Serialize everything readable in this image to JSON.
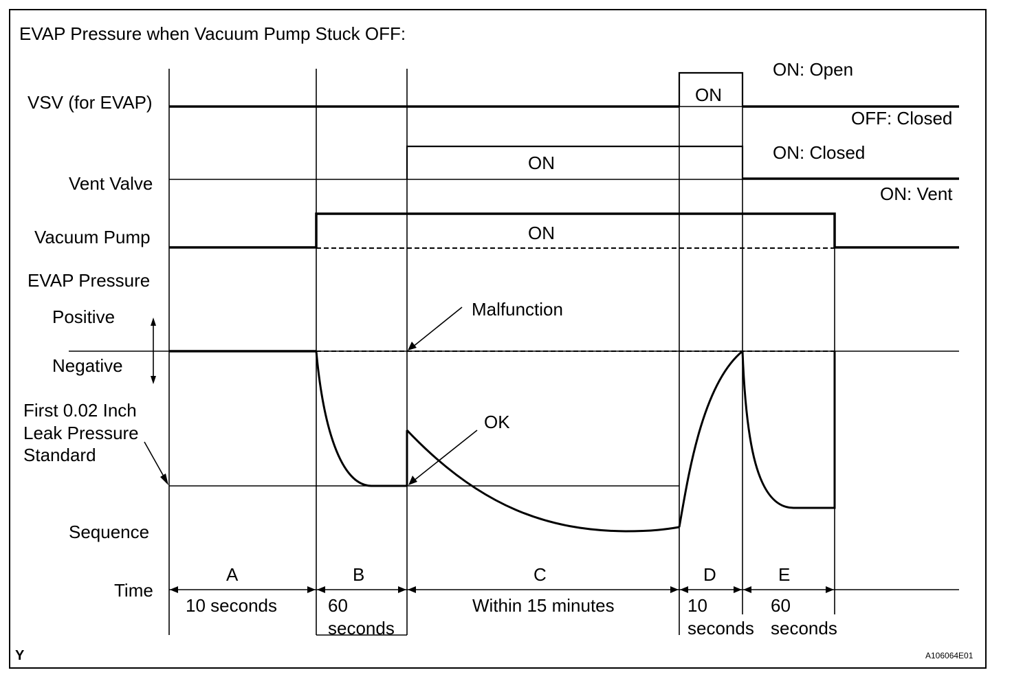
{
  "title": "EVAP Pressure when Vacuum Pump Stuck OFF:",
  "row_labels": {
    "vsv": "VSV (for EVAP)",
    "vent_valve": "Vent Valve",
    "vacuum_pump": "Vacuum Pump",
    "evap_pressure": "EVAP Pressure",
    "positive": "Positive",
    "negative": "Negative",
    "leak_line1": "First 0.02 Inch",
    "leak_line2": "Leak Pressure",
    "leak_line3": "Standard",
    "sequence": "Sequence",
    "time": "Time"
  },
  "state_labels": {
    "vsv_on_open": "ON: Open",
    "vsv_off_closed": "OFF: Closed",
    "vent_on_closed": "ON: Closed",
    "vent_on_vent": "ON: Vent",
    "vsv_on": "ON",
    "vent_on": "ON",
    "pump_on": "ON"
  },
  "callouts": {
    "malfunction": "Malfunction",
    "ok": "OK"
  },
  "sequence": [
    {
      "letter": "A",
      "duration": [
        "10 seconds"
      ]
    },
    {
      "letter": "B",
      "duration": [
        "60",
        "seconds"
      ]
    },
    {
      "letter": "C",
      "duration": [
        "Within 15 minutes"
      ]
    },
    {
      "letter": "D",
      "duration": [
        "10",
        "seconds"
      ]
    },
    {
      "letter": "E",
      "duration": [
        "60",
        "seconds"
      ]
    }
  ],
  "footer": {
    "corner_mark": "Y",
    "figure_id": "A106064E01"
  }
}
